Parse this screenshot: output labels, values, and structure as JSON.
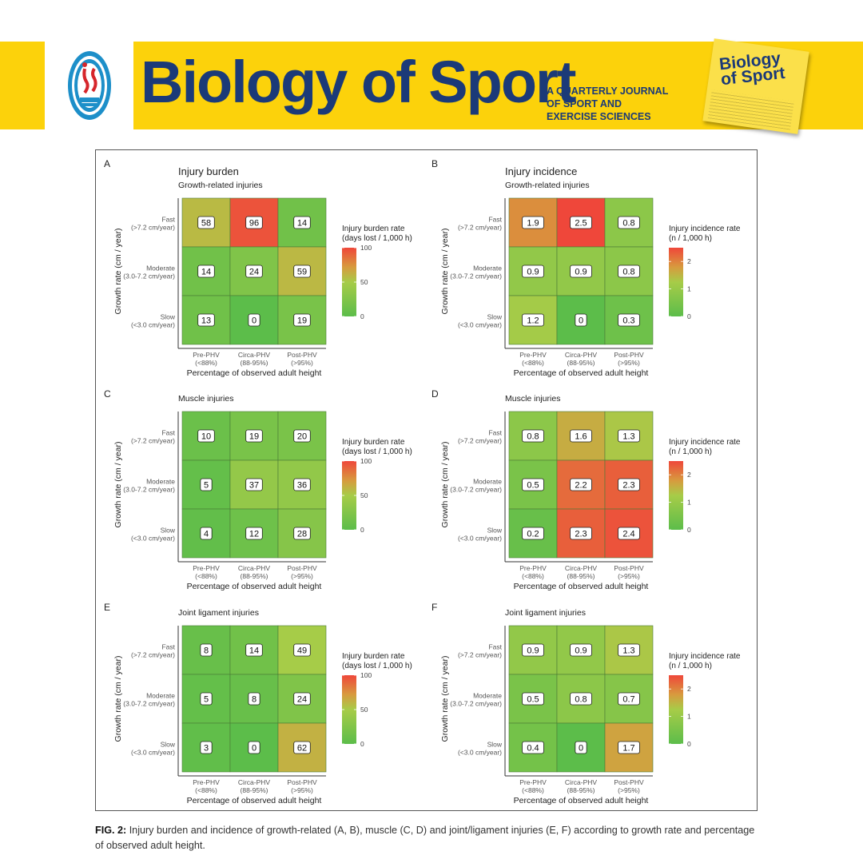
{
  "header": {
    "journal_title": "Biology of Sport",
    "subtitle_lines": [
      "A QUARTERLY JOURNAL",
      "OF SPORT AND",
      "EXERCISE SCIENCES"
    ],
    "cover_title_lines": [
      "Biology",
      "of Sport"
    ],
    "brand_yellow": "#fcd20b",
    "brand_blue": "#1b3a78"
  },
  "caption": {
    "label": "FIG. 2:",
    "text": "Injury burden and incidence of growth-related (A, B), muscle (C, D) and joint/ligament injuries (E, F) according to growth rate and percentage of observed adult height."
  },
  "chart_data": [
    {
      "type": "heatmap",
      "panel": "A",
      "title": "Injury burden",
      "subtitle": "Growth-related injuries",
      "xlabel": "Percentage of observed adult height",
      "ylabel": "Growth rate (cm / year)",
      "x_categories": [
        [
          "Pre-PHV",
          "(<88%)"
        ],
        [
          "Circa-PHV",
          "(88-95%)"
        ],
        [
          "Post-PHV",
          "(>95%)"
        ]
      ],
      "y_categories": [
        [
          "Fast",
          "(>7.2 cm/year)"
        ],
        [
          "Moderate",
          "(3.0-7.2 cm/year)"
        ],
        [
          "Slow",
          "(<3.0 cm/year)"
        ]
      ],
      "values": [
        [
          58,
          96,
          14
        ],
        [
          14,
          24,
          59
        ],
        [
          13,
          0,
          19
        ]
      ],
      "labels": [
        [
          "58",
          "96",
          "14"
        ],
        [
          "14",
          "24",
          "59"
        ],
        [
          "13",
          "0",
          "19"
        ]
      ],
      "legend": {
        "title": [
          "Injury burden rate",
          "(days lost / 1,000 h)"
        ],
        "range": [
          0,
          100
        ],
        "ticks": [
          "0",
          "50",
          "100"
        ],
        "tick_values": [
          0,
          50,
          100
        ]
      }
    },
    {
      "type": "heatmap",
      "panel": "B",
      "title": "Injury incidence",
      "subtitle": "Growth-related injuries",
      "xlabel": "Percentage of observed adult height",
      "ylabel": "Growth rate (cm / year)",
      "x_categories": [
        [
          "Pre-PHV",
          "(<88%)"
        ],
        [
          "Circa-PHV",
          "(88-95%)"
        ],
        [
          "Post-PHV",
          "(>95%)"
        ]
      ],
      "y_categories": [
        [
          "Fast",
          "(>7.2 cm/year)"
        ],
        [
          "Moderate",
          "(3.0-7.2 cm/year)"
        ],
        [
          "Slow",
          "(<3.0 cm/year)"
        ]
      ],
      "values": [
        [
          1.9,
          2.5,
          0.8
        ],
        [
          0.9,
          0.9,
          0.8
        ],
        [
          1.2,
          0,
          0.3
        ]
      ],
      "labels": [
        [
          "1.9",
          "2.5",
          "0.8"
        ],
        [
          "0.9",
          "0.9",
          "0.8"
        ],
        [
          "1.2",
          "0",
          "0.3"
        ]
      ],
      "legend": {
        "title": [
          "Injury incidence rate",
          "(n / 1,000 h)"
        ],
        "range": [
          0,
          2.5
        ],
        "ticks": [
          "0",
          "1",
          "2"
        ],
        "tick_values": [
          0,
          1,
          2
        ]
      }
    },
    {
      "type": "heatmap",
      "panel": "C",
      "title": "",
      "subtitle": "Muscle injuries",
      "xlabel": "Percentage of observed adult height",
      "ylabel": "Growth rate (cm / year)",
      "x_categories": [
        [
          "Pre-PHV",
          "(<88%)"
        ],
        [
          "Circa-PHV",
          "(88-95%)"
        ],
        [
          "Post-PHV",
          "(>95%)"
        ]
      ],
      "y_categories": [
        [
          "Fast",
          "(>7.2 cm/year)"
        ],
        [
          "Moderate",
          "(3.0-7.2 cm/year)"
        ],
        [
          "Slow",
          "(<3.0 cm/year)"
        ]
      ],
      "values": [
        [
          10,
          19,
          20
        ],
        [
          5,
          37,
          36
        ],
        [
          4,
          12,
          28
        ]
      ],
      "labels": [
        [
          "10",
          "19",
          "20"
        ],
        [
          "5",
          "37",
          "36"
        ],
        [
          "4",
          "12",
          "28"
        ]
      ],
      "legend": {
        "title": [
          "Injury burden rate",
          "(days lost / 1,000 h)"
        ],
        "range": [
          0,
          100
        ],
        "ticks": [
          "0",
          "50",
          "100"
        ],
        "tick_values": [
          0,
          50,
          100
        ]
      }
    },
    {
      "type": "heatmap",
      "panel": "D",
      "title": "",
      "subtitle": "Muscle injuries",
      "xlabel": "Percentage of observed adult height",
      "ylabel": "Growth rate (cm / year)",
      "x_categories": [
        [
          "Pre-PHV",
          "(<88%)"
        ],
        [
          "Circa-PHV",
          "(88-95%)"
        ],
        [
          "Post-PHV",
          "(>95%)"
        ]
      ],
      "y_categories": [
        [
          "Fast",
          "(>7.2 cm/year)"
        ],
        [
          "Moderate",
          "(3.0-7.2 cm/year)"
        ],
        [
          "Slow",
          "(<3.0 cm/year)"
        ]
      ],
      "values": [
        [
          0.8,
          1.6,
          1.3
        ],
        [
          0.5,
          2.2,
          2.3
        ],
        [
          0.2,
          2.3,
          2.4
        ]
      ],
      "labels": [
        [
          "0.8",
          "1.6",
          "1.3"
        ],
        [
          "0.5",
          "2.2",
          "2.3"
        ],
        [
          "0.2",
          "2.3",
          "2.4"
        ]
      ],
      "legend": {
        "title": [
          "Injury incidence rate",
          "(n / 1,000 h)"
        ],
        "range": [
          0,
          2.5
        ],
        "ticks": [
          "0",
          "1",
          "2"
        ],
        "tick_values": [
          0,
          1,
          2
        ]
      }
    },
    {
      "type": "heatmap",
      "panel": "E",
      "title": "",
      "subtitle": "Joint ligament injuries",
      "xlabel": "Percentage of observed adult height",
      "ylabel": "Growth rate (cm / year)",
      "x_categories": [
        [
          "Pre-PHV",
          "(<88%)"
        ],
        [
          "Circa-PHV",
          "(88-95%)"
        ],
        [
          "Post-PHV",
          "(>95%)"
        ]
      ],
      "y_categories": [
        [
          "Fast",
          "(>7.2 cm/year)"
        ],
        [
          "Moderate",
          "(3.0-7.2 cm/year)"
        ],
        [
          "Slow",
          "(<3.0 cm/year)"
        ]
      ],
      "values": [
        [
          8,
          14,
          49
        ],
        [
          5,
          8,
          24
        ],
        [
          3,
          0,
          62
        ]
      ],
      "labels": [
        [
          "8",
          "14",
          "49"
        ],
        [
          "5",
          "8",
          "24"
        ],
        [
          "3",
          "0",
          "62"
        ]
      ],
      "legend": {
        "title": [
          "Injury burden rate",
          "(days lost / 1,000 h)"
        ],
        "range": [
          0,
          100
        ],
        "ticks": [
          "0",
          "50",
          "100"
        ],
        "tick_values": [
          0,
          50,
          100
        ]
      }
    },
    {
      "type": "heatmap",
      "panel": "F",
      "title": "",
      "subtitle": "Joint ligament injuries",
      "xlabel": "Percentage of observed adult height",
      "ylabel": "Growth rate (cm / year)",
      "x_categories": [
        [
          "Pre-PHV",
          "(<88%)"
        ],
        [
          "Circa-PHV",
          "(88-95%)"
        ],
        [
          "Post-PHV",
          "(>95%)"
        ]
      ],
      "y_categories": [
        [
          "Fast",
          "(>7.2 cm/year)"
        ],
        [
          "Moderate",
          "(3.0-7.2 cm/year)"
        ],
        [
          "Slow",
          "(<3.0 cm/year)"
        ]
      ],
      "values": [
        [
          0.9,
          0.9,
          1.3
        ],
        [
          0.5,
          0.8,
          0.7
        ],
        [
          0.4,
          0,
          1.7
        ]
      ],
      "labels": [
        [
          "0.9",
          "0.9",
          "1.3"
        ],
        [
          "0.5",
          "0.8",
          "0.7"
        ],
        [
          "0.4",
          "0",
          "1.7"
        ]
      ],
      "legend": {
        "title": [
          "Injury incidence rate",
          "(n / 1,000 h)"
        ],
        "range": [
          0,
          2.5
        ],
        "ticks": [
          "0",
          "1",
          "2"
        ],
        "tick_values": [
          0,
          1,
          2
        ]
      }
    }
  ],
  "color_scale": {
    "low": "#5cbd4a",
    "mid": "#a7cc48",
    "high": "#ef473a"
  }
}
